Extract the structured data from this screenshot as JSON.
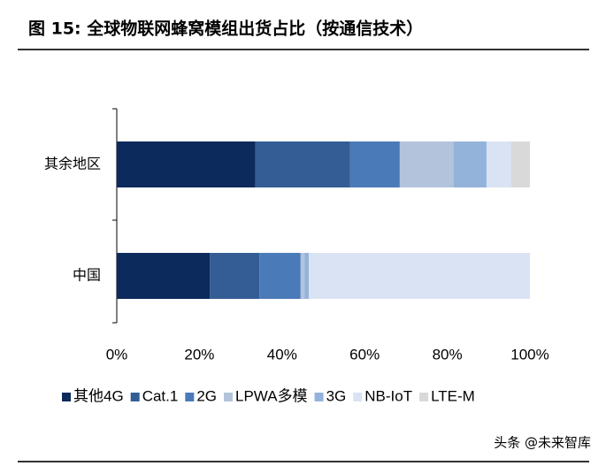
{
  "chart_data": {
    "type": "stacked-bar-horizontal",
    "title": "图 15:  全球物联网蜂窝模组出货占比（按通信技术）",
    "categories": [
      "其余地区",
      "中国"
    ],
    "series": [
      {
        "name": "其他4G",
        "color": "#0d2a5c",
        "values": [
          33.5,
          22.5
        ]
      },
      {
        "name": "Cat.1",
        "color": "#335d94",
        "values": [
          23,
          12
        ]
      },
      {
        "name": "2G",
        "color": "#4a7ab8",
        "values": [
          12,
          10
        ]
      },
      {
        "name": "LPWA多模",
        "color": "#b3c3dc",
        "values": [
          13,
          1
        ]
      },
      {
        "name": "3G",
        "color": "#94b3da",
        "values": [
          8,
          1
        ]
      },
      {
        "name": "NB-IoT",
        "color": "#dae3f3",
        "values": [
          6,
          53.5
        ]
      },
      {
        "name": "LTE-M",
        "color": "#d9d9d9",
        "values": [
          4.5,
          0
        ]
      }
    ],
    "xlim": [
      0,
      100
    ],
    "xticks": [
      {
        "value": 0,
        "label": "0%"
      },
      {
        "value": 20,
        "label": "20%"
      },
      {
        "value": 40,
        "label": "40%"
      },
      {
        "value": 60,
        "label": "60%"
      },
      {
        "value": 80,
        "label": "80%"
      },
      {
        "value": 100,
        "label": "100%"
      }
    ],
    "watermark": "头条 @未来智库"
  }
}
